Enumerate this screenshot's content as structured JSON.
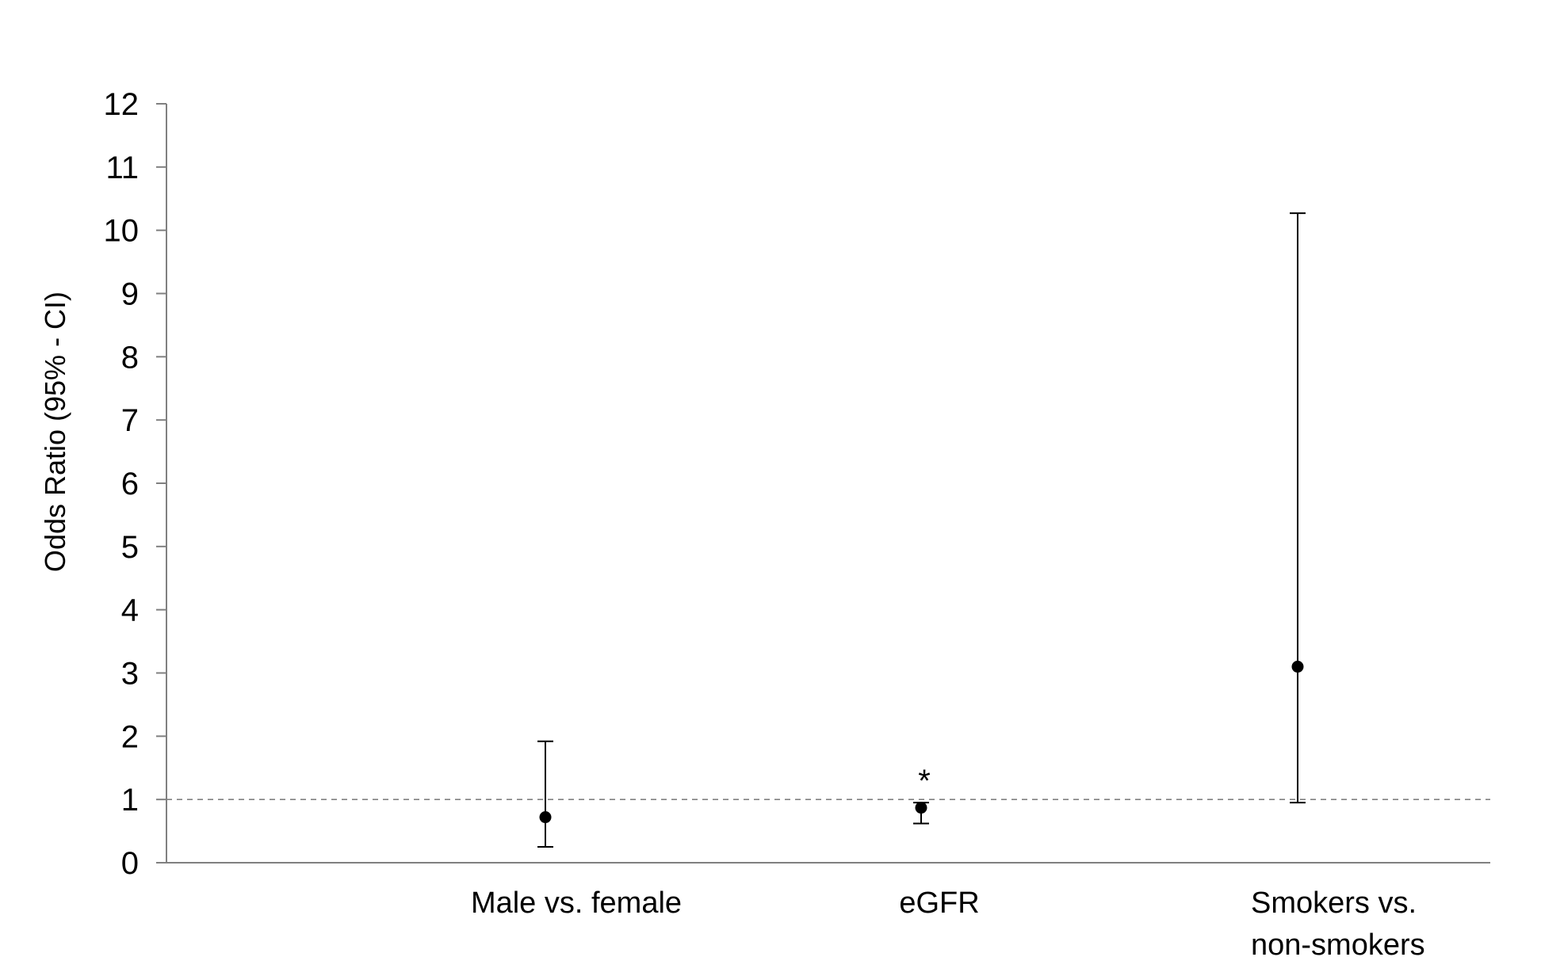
{
  "chart_data": {
    "type": "scatter",
    "title": "",
    "xlabel": "",
    "ylabel": "Odds Ratio (95% - CI)",
    "ylim": [
      0,
      12
    ],
    "yticks": [
      0,
      1,
      2,
      3,
      4,
      5,
      6,
      7,
      8,
      9,
      10,
      11,
      12
    ],
    "grid": false,
    "legend": "none",
    "reference_line": {
      "y": 1,
      "style": "dashed"
    },
    "categories": [
      {
        "label_lines": [
          "Male vs. female"
        ],
        "or": 0.72,
        "ci_low": 0.25,
        "ci_high": 1.92,
        "annotation": ""
      },
      {
        "label_lines": [
          "eGFR"
        ],
        "or": 0.87,
        "ci_low": 0.62,
        "ci_high": 0.95,
        "annotation": "*"
      },
      {
        "label_lines": [
          "Smokers vs.",
          "non-smokers"
        ],
        "or": 3.1,
        "ci_low": 0.95,
        "ci_high": 10.27,
        "annotation": ""
      }
    ],
    "colors": {
      "marker": "#000000",
      "axis": "#808080",
      "errorbar": "#000000",
      "reference": "#808080"
    }
  }
}
